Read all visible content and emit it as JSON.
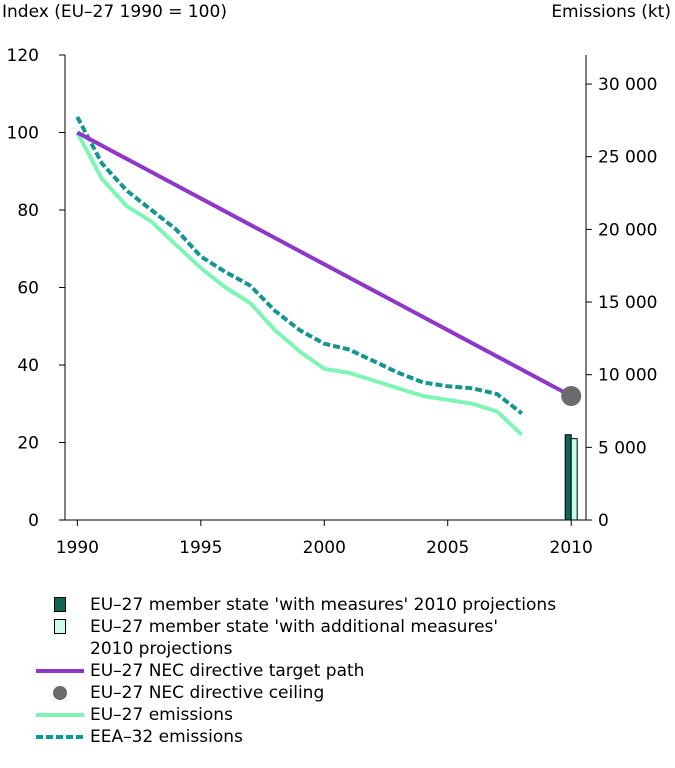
{
  "chart_data": {
    "type": "line",
    "left_axis": {
      "title": "Index (EU–27 1990 = 100)",
      "range": [
        0,
        120
      ],
      "ticks": [
        0,
        20,
        40,
        60,
        80,
        100,
        120
      ]
    },
    "right_axis": {
      "title": "Emissions (kt)",
      "range": [
        0,
        32000
      ],
      "ticks": [
        0,
        5000,
        10000,
        15000,
        20000,
        25000,
        30000
      ],
      "tick_labels": [
        "0",
        "5 000",
        "10 000",
        "15 000",
        "20 000",
        "25 000",
        "30 000"
      ]
    },
    "x_axis": {
      "range": [
        1989.5,
        2010.6
      ],
      "ticks": [
        1990,
        1995,
        2000,
        2005,
        2010
      ],
      "tick_labels": [
        "1990",
        "1995",
        "2000",
        "2005",
        "2010"
      ]
    },
    "series": [
      {
        "name": "EU–27 emissions",
        "style": "solid",
        "color": "#7ff5b5",
        "x": [
          1990,
          1991,
          1992,
          1993,
          1994,
          1995,
          1996,
          1997,
          1998,
          1999,
          2000,
          2001,
          2002,
          2003,
          2004,
          2005,
          2006,
          2007,
          2008
        ],
        "y": [
          100,
          88,
          81,
          77,
          71,
          65,
          60,
          56,
          49,
          43.5,
          39,
          38,
          36,
          34,
          32,
          31,
          30,
          28,
          22
        ]
      },
      {
        "name": "EEA–32 emissions",
        "style": "dashed",
        "color": "#12968f",
        "x": [
          1990,
          1991,
          1992,
          1993,
          1994,
          1995,
          1996,
          1997,
          1998,
          1999,
          2000,
          2001,
          2002,
          2003,
          2004,
          2005,
          2006,
          2007,
          2008
        ],
        "y": [
          104,
          92,
          85,
          80,
          75,
          68,
          64,
          60.5,
          54,
          49,
          45.5,
          44,
          41,
          38,
          35.5,
          34.5,
          34,
          32.5,
          27.5
        ]
      },
      {
        "name": "EU–27 NEC directive target path",
        "style": "solid",
        "color": "#8f37c8",
        "x": [
          1990,
          2010
        ],
        "y": [
          100,
          32
        ]
      }
    ],
    "points": [
      {
        "name": "EU–27 NEC directive ceiling",
        "x": 2010,
        "y": 32,
        "color": "#6b6b6b"
      }
    ],
    "bars": [
      {
        "name": "EU–27 member state 'with measures' 2010 projections",
        "x": 2010,
        "value": 22,
        "color": "#0f6657"
      },
      {
        "name": "EU–27 member state 'with additional measures' 2010 projections",
        "x": 2010,
        "value": 21,
        "color": "#c7fbec"
      }
    ]
  },
  "legend": [
    {
      "label": "EU–27 member state 'with measures' 2010 projections",
      "symbol": "swatch",
      "color": "#0f6657"
    },
    {
      "label": "EU–27 member state 'with additional measures'\n2010 projections",
      "symbol": "swatch",
      "color": "#c7fbec"
    },
    {
      "label": "EU–27 NEC directive target path",
      "symbol": "line",
      "color": "#8f37c8"
    },
    {
      "label": "EU–27 NEC directive ceiling",
      "symbol": "dot",
      "color": "#6b6b6b"
    },
    {
      "label": "EU–27 emissions",
      "symbol": "line",
      "color": "#7ff5b5"
    },
    {
      "label": "EEA–32 emissions",
      "symbol": "dash",
      "color": "#12968f"
    }
  ]
}
